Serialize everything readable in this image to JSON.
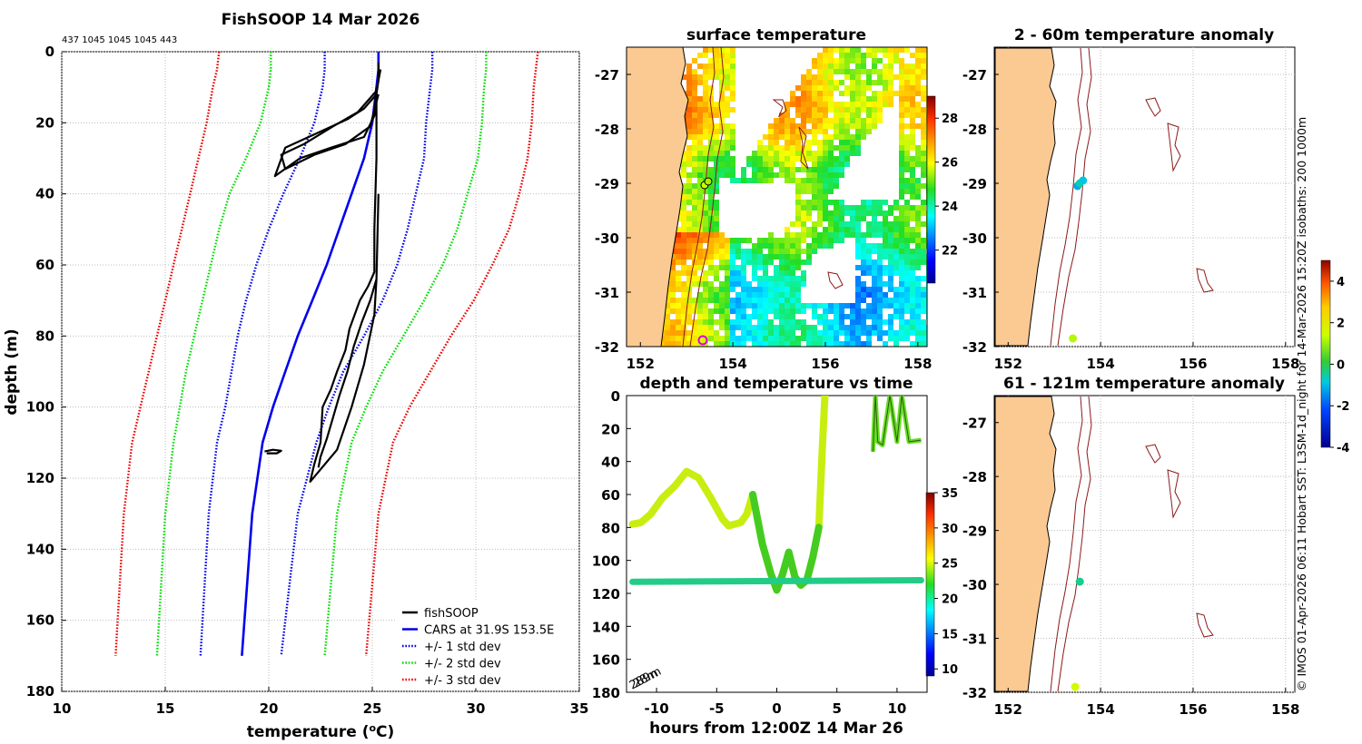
{
  "chart_data": [
    {
      "type": "line",
      "panel": "profile",
      "title": "FishSOOP 14 Mar 2026",
      "subtitle": "437 1045 1045 1045 443",
      "xlabel": "temperature (oC)",
      "ylabel": "depth (m)",
      "xlim": [
        10,
        35
      ],
      "ylim": [
        180,
        0
      ],
      "xticks": [
        "10",
        "15",
        "20",
        "25",
        "30",
        "35"
      ],
      "yticks": [
        "0",
        "20",
        "40",
        "60",
        "80",
        "100",
        "120",
        "140",
        "160",
        "180"
      ],
      "grid": true,
      "legend_position": "bottom-right",
      "legend": [
        "fishSOOP",
        "CARS at 31.9S 153.5E",
        "+/- 1 std dev",
        "+/- 2 std dev",
        "+/- 3 std dev"
      ],
      "series": [
        {
          "name": "CARS at 31.9S 153.5E",
          "color": "#0000ee",
          "style": "solid",
          "x": [
            25.3,
            25.3,
            25.2,
            25.0,
            24.6,
            24.0,
            23.4,
            22.8,
            22.1,
            21.4,
            20.8,
            20.2,
            19.7,
            19.2,
            18.7
          ],
          "y": [
            0,
            5,
            10,
            20,
            30,
            40,
            50,
            60,
            70,
            80,
            90,
            100,
            110,
            130,
            170
          ]
        },
        {
          "name": "CARS -1 std",
          "color": "#0000ee",
          "style": "dotted",
          "x": [
            22.7,
            22.7,
            22.6,
            22.2,
            21.5,
            20.7,
            20.0,
            19.4,
            18.9,
            18.5,
            18.2,
            17.9,
            17.5,
            17.1,
            16.7
          ],
          "y": [
            0,
            5,
            10,
            20,
            30,
            40,
            50,
            60,
            70,
            80,
            90,
            100,
            110,
            130,
            170
          ]
        },
        {
          "name": "CARS +1 std",
          "color": "#0000ee",
          "style": "dotted",
          "x": [
            27.9,
            27.9,
            27.8,
            27.6,
            27.5,
            27.1,
            26.7,
            26.2,
            25.5,
            24.6,
            23.6,
            22.9,
            22.3,
            21.4,
            20.6
          ],
          "y": [
            0,
            5,
            10,
            20,
            30,
            40,
            50,
            60,
            70,
            80,
            90,
            100,
            110,
            130,
            170
          ]
        },
        {
          "name": "CARS -2 std",
          "color": "#00dd00",
          "style": "dotted",
          "x": [
            20.1,
            20.1,
            20.0,
            19.6,
            18.9,
            18.1,
            17.6,
            17.2,
            16.8,
            16.4,
            16.0,
            15.7,
            15.4,
            15.0,
            14.6
          ],
          "y": [
            0,
            5,
            10,
            20,
            30,
            40,
            50,
            60,
            70,
            80,
            90,
            100,
            110,
            130,
            170
          ]
        },
        {
          "name": "CARS +2 std",
          "color": "#00dd00",
          "style": "dotted",
          "x": [
            30.5,
            30.5,
            30.4,
            30.3,
            30.1,
            29.6,
            29.1,
            28.4,
            27.5,
            26.5,
            25.5,
            24.7,
            24.0,
            23.3,
            22.7
          ],
          "y": [
            0,
            5,
            10,
            20,
            30,
            40,
            50,
            60,
            70,
            80,
            90,
            100,
            110,
            130,
            170
          ]
        },
        {
          "name": "CARS -3 std",
          "color": "#ee0000",
          "style": "dotted",
          "x": [
            17.6,
            17.5,
            17.3,
            17.0,
            16.6,
            16.2,
            15.8,
            15.4,
            15.0,
            14.6,
            14.2,
            13.8,
            13.4,
            13.0,
            12.6
          ],
          "y": [
            0,
            5,
            10,
            20,
            30,
            40,
            50,
            60,
            70,
            80,
            90,
            100,
            110,
            130,
            170
          ]
        },
        {
          "name": "CARS +3 std",
          "color": "#ee0000",
          "style": "dotted",
          "x": [
            33.0,
            32.9,
            32.8,
            32.7,
            32.5,
            32.1,
            31.6,
            30.8,
            29.9,
            28.8,
            27.8,
            26.8,
            26.0,
            25.3,
            24.7
          ],
          "y": [
            0,
            5,
            10,
            20,
            30,
            40,
            50,
            60,
            70,
            80,
            90,
            100,
            110,
            130,
            170
          ]
        },
        {
          "name": "fishSOOP cast A",
          "color": "#000000",
          "style": "solid",
          "x": [
            25.3,
            25.3,
            25.2,
            24.6,
            23.8,
            22.3,
            20.8,
            20.3,
            21.5,
            23.0,
            24.6,
            25.1,
            25.2
          ],
          "y": [
            3,
            8,
            12,
            16,
            19,
            23,
            27,
            35,
            30,
            27,
            24,
            18,
            10
          ]
        },
        {
          "name": "fishSOOP cast B",
          "color": "#000000",
          "style": "solid",
          "x": [
            25.4,
            25.2,
            24.3,
            23.1,
            21.7,
            20.6,
            20.8,
            22.2,
            23.7,
            24.9,
            25.3
          ],
          "y": [
            5,
            11,
            17,
            21,
            26,
            29,
            33,
            29,
            26,
            21,
            12
          ]
        },
        {
          "name": "fishSOOP cast C",
          "color": "#000000",
          "style": "solid",
          "x": [
            25.2,
            25.2,
            25.1,
            25.1,
            24.8,
            24.4,
            23.9,
            23.7,
            23.3,
            23.0,
            22.6,
            22.5,
            22.2,
            22.0,
            23.3,
            24.0,
            24.6,
            25.1,
            25.2
          ],
          "y": [
            11,
            30,
            50,
            62,
            66,
            70,
            78,
            84,
            90,
            95,
            100,
            110,
            116,
            121,
            112,
            100,
            88,
            74,
            64
          ]
        },
        {
          "name": "fishSOOP cast D",
          "color": "#000000",
          "style": "solid",
          "x": [
            25.3,
            25.2,
            24.9,
            24.5,
            24.1,
            23.8,
            23.4,
            23.1,
            22.8,
            22.5,
            22.4
          ],
          "y": [
            40,
            64,
            70,
            76,
            83,
            90,
            97,
            103,
            109,
            114,
            117
          ]
        },
        {
          "name": "fishSOOP blip",
          "color": "#000000",
          "style": "solid",
          "x": [
            19.8,
            20.2,
            20.6,
            20.4,
            19.9
          ],
          "y": [
            112.5,
            112,
            112.3,
            113,
            113
          ]
        }
      ]
    },
    {
      "type": "heatmap",
      "panel": "surface-temperature",
      "title": "surface temperature",
      "xlim": [
        151.7,
        158.2
      ],
      "ylim": [
        -32,
        -26.5
      ],
      "xticks": [
        "152",
        "154",
        "156",
        "158"
      ],
      "yticks": [
        "-27",
        "-28",
        "-29",
        "-30",
        "-31",
        "-32"
      ],
      "colorbar": {
        "min": 20.5,
        "max": 29,
        "ticks": [
          "22",
          "24",
          "26",
          "28"
        ]
      }
    },
    {
      "type": "scatter",
      "panel": "time-series",
      "title": "depth and temperature vs time",
      "xlabel": "hours from 12:00Z 14 Mar 26",
      "xlim": [
        -12.5,
        12.5
      ],
      "ylim": [
        180,
        0
      ],
      "xticks": [
        "-10",
        "-5",
        "0",
        "5",
        "10"
      ],
      "yticks": [
        "0",
        "20",
        "40",
        "60",
        "80",
        "100",
        "120",
        "140",
        "160",
        "180"
      ],
      "annotation": "289m",
      "annotation_overlap": "28m",
      "colorbar": {
        "min": 9,
        "max": 35,
        "ticks": [
          "10",
          "15",
          "20",
          "25",
          "30",
          "35"
        ]
      },
      "series": [
        {
          "name": "shallow track",
          "temp": 23.0,
          "x": [
            -12,
            -11.3,
            -10.5,
            -9.5,
            -8.5,
            -7.5,
            -6.5,
            -5.5,
            -4.5,
            -4,
            -3,
            -2.5,
            -2,
            -1.2,
            -0.5,
            0,
            0.5,
            1,
            1.5,
            2,
            2.5,
            3,
            3.5,
            3.8,
            4
          ],
          "y": [
            78,
            77,
            72,
            62,
            55,
            46,
            50,
            62,
            75,
            79,
            77,
            72,
            60,
            90,
            108,
            118,
            108,
            95,
            110,
            115,
            112,
            98,
            80,
            30,
            0
          ]
        },
        {
          "name": "deep track",
          "temp": 21.0,
          "x": [
            -12,
            12
          ],
          "y": [
            113,
            112
          ]
        },
        {
          "name": "surface casts",
          "temp": 22.0,
          "x": [
            8,
            8.2,
            8.4,
            8.8,
            9.4,
            10,
            10.4,
            11,
            12
          ],
          "y": [
            34,
            0,
            28,
            30,
            0,
            28,
            0,
            28,
            27
          ]
        }
      ]
    },
    {
      "type": "scatter",
      "panel": "anomaly-shallow",
      "title": "2 - 60m temperature anomaly",
      "xlim": [
        151.7,
        158.2
      ],
      "ylim": [
        -32,
        -26.5
      ],
      "xticks": [
        "152",
        "154",
        "156",
        "158"
      ],
      "yticks": [
        "-27",
        "-28",
        "-29",
        "-30",
        "-31",
        "-32"
      ],
      "colorbar": {
        "min": -4,
        "max": 5,
        "ticks": [
          "-4",
          "-2",
          "0",
          "2",
          "4"
        ]
      },
      "series": [
        {
          "name": "anomaly points",
          "lon": [
            153.5,
            153.55,
            153.62,
            153.4
          ],
          "lat": [
            -29.05,
            -29.0,
            -28.95,
            -31.85
          ],
          "anomaly": [
            -1.2,
            -0.6,
            -0.9,
            1.2
          ]
        }
      ]
    },
    {
      "type": "scatter",
      "panel": "anomaly-deep",
      "title": "61 - 121m temperature anomaly",
      "xlim": [
        151.7,
        158.2
      ],
      "ylim": [
        -32,
        -26.5
      ],
      "xticks": [
        "152",
        "154",
        "156",
        "158"
      ],
      "yticks": [
        "-27",
        "-28",
        "-29",
        "-30",
        "-31",
        "-32"
      ],
      "series": [
        {
          "name": "anomaly points",
          "lon": [
            153.55,
            153.45
          ],
          "lat": [
            -29.95,
            -31.9
          ],
          "anomaly": [
            -0.4,
            1.5
          ]
        }
      ]
    }
  ],
  "side_caption": "© IMOS 01-Apr-2026 06:11 Hobart SST: L3SM-1d_night for 14-Mar-2026 15:20Z isobaths: 200  1000m"
}
